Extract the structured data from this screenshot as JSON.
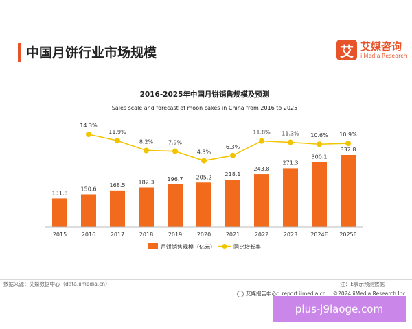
{
  "header": {
    "title": "中国月饼行业市场规模",
    "brand_logo_char": "艾",
    "brand_name_cn": "艾媒咨询",
    "brand_name_en": "iiMedia Research"
  },
  "chart_data": {
    "type": "bar",
    "title": "2016-2025年中国月饼销售规模及预测",
    "subtitle": "Sales scale and forecast of moon cakes in China from 2016 to 2025",
    "categories": [
      "2015",
      "2016",
      "2017",
      "2018",
      "2019",
      "2020",
      "2021",
      "2022",
      "2023",
      "2024E",
      "2025E"
    ],
    "series": [
      {
        "name": "月饼销售规模（亿元）",
        "type": "bar",
        "color": "#f26a1b",
        "values": [
          131.8,
          150.6,
          168.5,
          182.3,
          196.7,
          205.2,
          218.1,
          243.8,
          271.3,
          300.1,
          332.8
        ],
        "labels": [
          "131.8",
          "150.6",
          "168.5",
          "182.3",
          "196.7",
          "205.2",
          "218.1",
          "243.8",
          "271.3",
          "300.1",
          "332.8"
        ]
      },
      {
        "name": "同比增长率",
        "type": "line",
        "color": "#f2c400",
        "values": [
          null,
          14.3,
          11.9,
          8.2,
          7.9,
          4.3,
          6.3,
          11.8,
          11.3,
          10.6,
          10.9
        ],
        "labels": [
          "",
          "14.3%",
          "11.9%",
          "8.2%",
          "7.9%",
          "4.3%",
          "6.3%",
          "11.8%",
          "11.3%",
          "10.6%",
          "10.9%"
        ]
      }
    ],
    "legend_position": "bottom",
    "grid": false
  },
  "footer": {
    "source": "数据来源：艾媒数据中心（data.iimedia.cn）",
    "note": "注：E表示预测数据",
    "report_center": "艾媒报告中心：report.iimedia.cn",
    "copyright": "©2024  iiMedia Research Inc."
  },
  "watermark": "plus-j9laoge.com"
}
